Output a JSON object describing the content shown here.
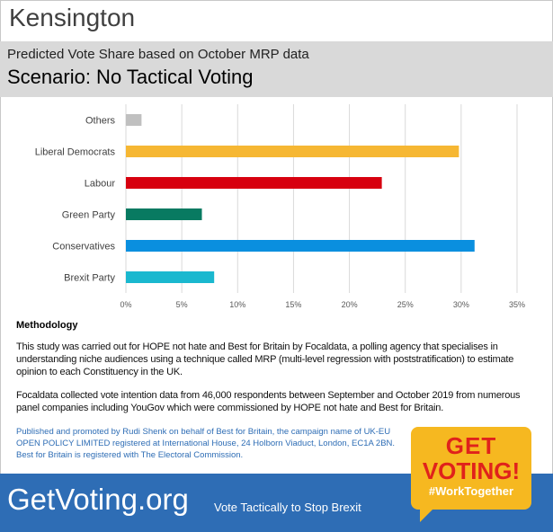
{
  "header": {
    "constituency": "Kensington",
    "subtitle": "Predicted Vote Share based on October MRP data",
    "scenario": "Scenario: No Tactical Voting"
  },
  "chart_data": {
    "type": "bar",
    "orientation": "horizontal",
    "categories": [
      "Others",
      "Liberal Democrats",
      "Labour",
      "Green Party",
      "Conservatives",
      "Brexit Party"
    ],
    "values": [
      1.4,
      29.8,
      22.9,
      6.8,
      31.2,
      7.9
    ],
    "colors": [
      "#c0c0c0",
      "#f6b733",
      "#d7000f",
      "#087a61",
      "#0a8fdf",
      "#1ab8cf"
    ],
    "xlim": [
      0,
      35
    ],
    "xticks": [
      "0%",
      "5%",
      "10%",
      "15%",
      "20%",
      "25%",
      "30%",
      "35%"
    ],
    "grid": "vertical",
    "title": "",
    "xlabel": "",
    "ylabel": ""
  },
  "methodology": {
    "title": "Methodology",
    "p1": "This study was carried out for HOPE not hate and Best for Britain by Focaldata, a polling agency that specialises in understanding niche audiences using a technique called MRP (multi-level regression with poststratification) to estimate opinion to each Constituency in the UK.",
    "p2": "Focaldata collected vote intention data from 46,000 respondents between September and October 2019 from numerous panel companies including YouGov which were commissioned by HOPE not hate and Best for Britain."
  },
  "publisher": "Published and promoted by Rudi Shenk on behalf of Best for Britain, the campaign name of UK-EU OPEN POLICY LIMITED registered at International House, 24 Holborn Viaduct, London, EC1A 2BN. Best for Britain is registered with The Electoral Commission.",
  "badge": {
    "line1": "GET",
    "line2": "VOTING!",
    "line3": "#WorkTogether"
  },
  "footer": {
    "brand": "GetVoting.org",
    "tagline": "Vote Tactically to Stop Brexit"
  },
  "colors": {
    "footer": "#2e6db5",
    "badge": "#f6b820",
    "badge_text": "#e0221b"
  }
}
